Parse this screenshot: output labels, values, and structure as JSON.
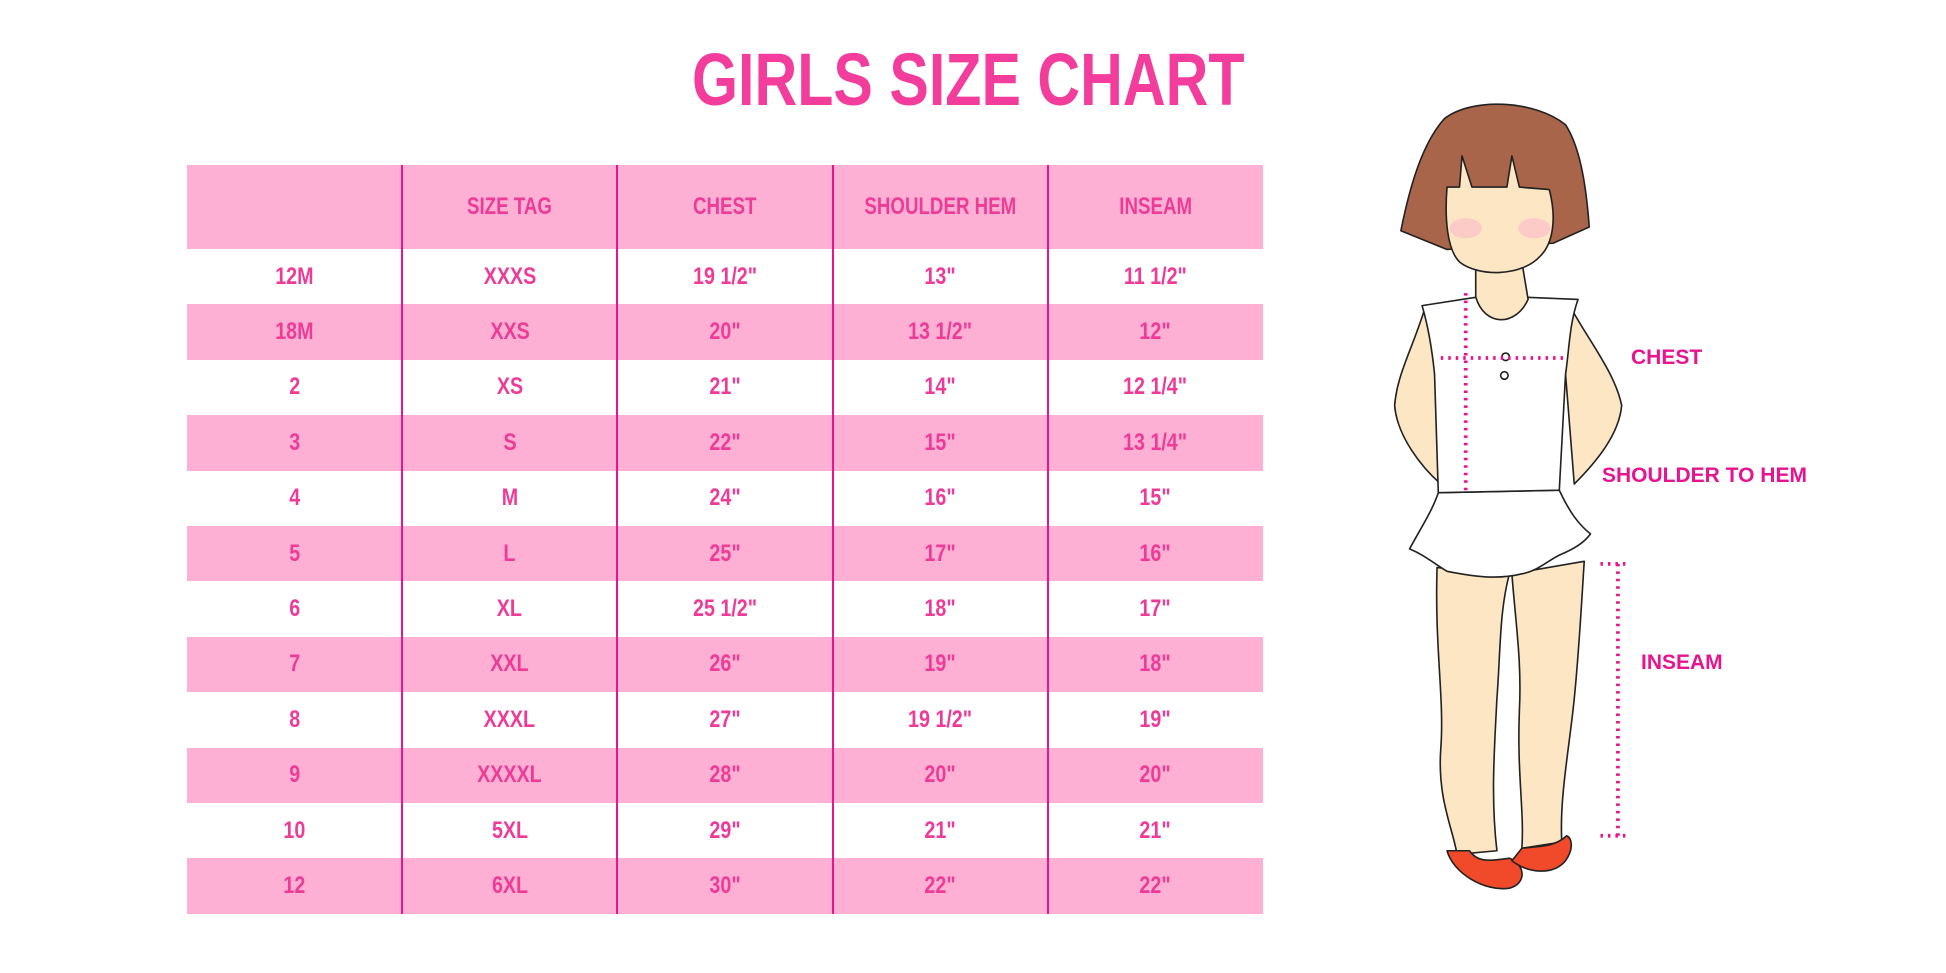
{
  "title": "GIRLS SIZE CHART",
  "colors": {
    "accent": "#f23d9c",
    "header_bg": "#fdb0d4",
    "divider": "#e8158e",
    "label": "#e6158f",
    "hair": "#a8654a",
    "skin": "#fde6c4",
    "shoes": "#f04a2a"
  },
  "table": {
    "headers": [
      "",
      "SIZE TAG",
      "CHEST",
      "SHOULDER HEM",
      "INSEAM"
    ],
    "rows": [
      [
        "12M",
        "XXXS",
        "19 1/2\"",
        "13\"",
        "11 1/2\""
      ],
      [
        "18M",
        "XXS",
        "20\"",
        "13 1/2\"",
        "12\""
      ],
      [
        "2",
        "XS",
        "21\"",
        "14\"",
        "12 1/4\""
      ],
      [
        "3",
        "S",
        "22\"",
        "15\"",
        "13 1/4\""
      ],
      [
        "4",
        "M",
        "24\"",
        "16\"",
        "15\""
      ],
      [
        "5",
        "L",
        "25\"",
        "17\"",
        "16\""
      ],
      [
        "6",
        "XL",
        "25 1/2\"",
        "18\"",
        "17\""
      ],
      [
        "7",
        "XXL",
        "26\"",
        "19\"",
        "18\""
      ],
      [
        "8",
        "XXXL",
        "27\"",
        "19 1/2\"",
        "19\""
      ],
      [
        "9",
        "XXXXL",
        "28\"",
        "20\"",
        "20\""
      ],
      [
        "10",
        "5XL",
        "29\"",
        "21\"",
        "21\""
      ],
      [
        "12",
        "6XL",
        "30\"",
        "22\"",
        "22\""
      ]
    ]
  },
  "figure": {
    "labels": {
      "chest": "CHEST",
      "shoulder": "SHOULDER TO HEM",
      "inseam": "INSEAM"
    }
  }
}
